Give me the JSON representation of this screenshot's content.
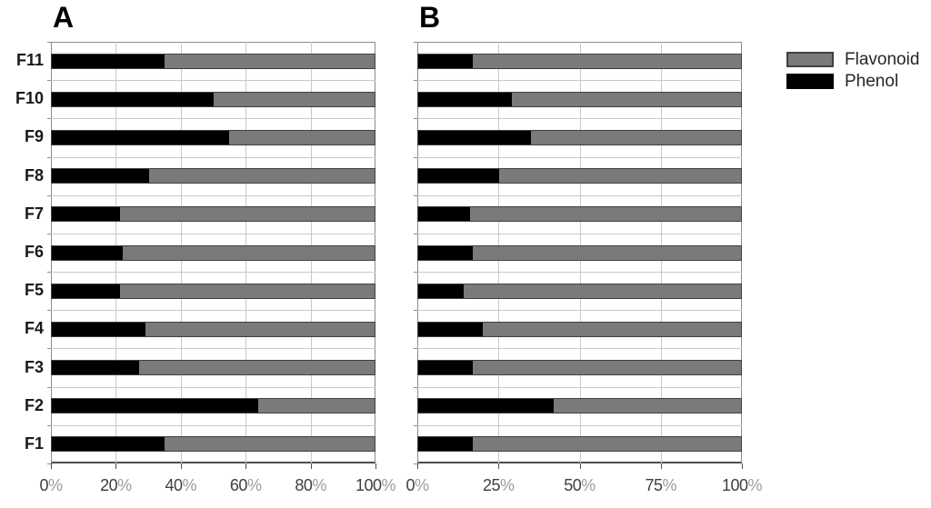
{
  "titles": {
    "panel_a": "A",
    "panel_b": "B"
  },
  "legend": {
    "position": "top-right-outside",
    "items": [
      {
        "label": "Flavonoid",
        "color": "#7a7a7a"
      },
      {
        "label": "Phenol",
        "color": "#000000"
      }
    ]
  },
  "colors": {
    "background": "#ffffff",
    "gridline": "#c9c9c9",
    "plot_frame": "#8c8c8c",
    "axis_line": "#4d4d4d",
    "bar_border": "#404040",
    "tick_number": "#3f3f3f",
    "tick_percent_sign": "#9b9b9b",
    "category_label": "#1a1a1a",
    "flavonoid_gray": "#7a7a7a",
    "phenol_black": "#000000"
  },
  "chart_data": [
    {
      "id": "a",
      "type": "bar",
      "orientation": "horizontal",
      "stacked": true,
      "panel_title": "A",
      "grid": true,
      "show_category_labels": true,
      "categories": [
        "F11",
        "F10",
        "F9",
        "F8",
        "F7",
        "F6",
        "F5",
        "F4",
        "F3",
        "F2",
        "F1"
      ],
      "series": [
        {
          "name": "Phenol",
          "color": "#000000",
          "values": [
            35,
            50,
            55,
            30,
            21,
            22,
            21,
            29,
            27,
            64,
            35
          ]
        },
        {
          "name": "Flavonoid",
          "color": "#7a7a7a",
          "values": [
            65,
            50,
            45,
            70,
            79,
            78,
            79,
            71,
            73,
            36,
            65
          ]
        }
      ],
      "x_ticks": [
        "0%",
        "20%",
        "40%",
        "60%",
        "80%",
        "100%"
      ],
      "xlim": [
        0,
        100
      ],
      "unit": "%"
    },
    {
      "id": "b",
      "type": "bar",
      "orientation": "horizontal",
      "stacked": true,
      "panel_title": "B",
      "grid": true,
      "show_category_labels": false,
      "categories": [
        "F11",
        "F10",
        "F9",
        "F8",
        "F7",
        "F6",
        "F5",
        "F4",
        "F3",
        "F2",
        "F1"
      ],
      "series": [
        {
          "name": "Phenol",
          "color": "#000000",
          "values": [
            17,
            29,
            35,
            25,
            16,
            17,
            14,
            20,
            17,
            42,
            17
          ]
        },
        {
          "name": "Flavonoid",
          "color": "#7a7a7a",
          "values": [
            83,
            71,
            65,
            75,
            84,
            83,
            86,
            80,
            83,
            58,
            83
          ]
        }
      ],
      "x_ticks": [
        "0%",
        "25%",
        "50%",
        "75%",
        "100%"
      ],
      "xlim": [
        0,
        100
      ],
      "unit": "%"
    }
  ]
}
